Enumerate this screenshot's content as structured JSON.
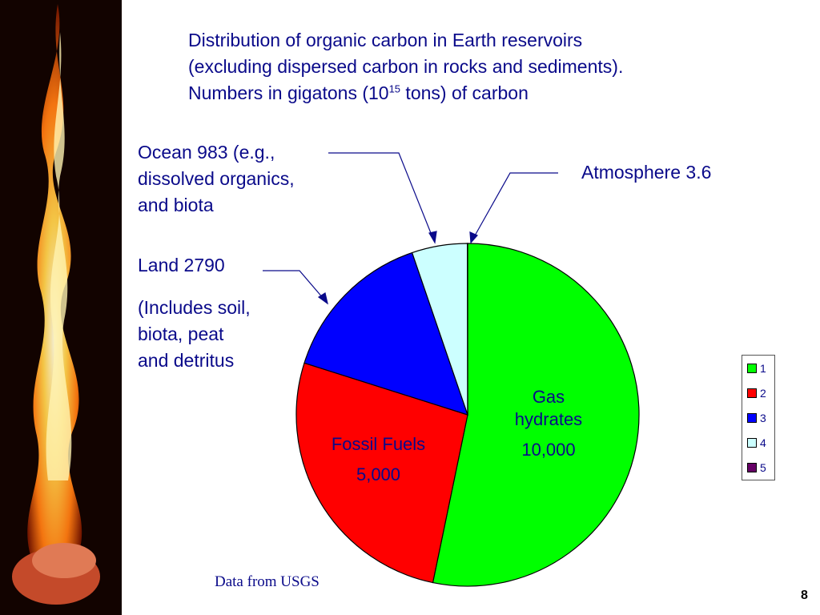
{
  "title": {
    "line1": "Distribution of organic carbon in Earth reservoirs",
    "line2": "(excluding dispersed carbon in rocks and sediments).",
    "line3_pre": "Numbers in gigatons (10",
    "line3_sup": "15",
    "line3_post": " tons) of carbon"
  },
  "callouts": {
    "ocean": [
      "Ocean 983 (e.g.,",
      "dissolved organics,",
      "and biota"
    ],
    "atmosphere": "Atmosphere 3.6",
    "land": "Land 2790",
    "land_detail": [
      "(Includes soil,",
      "biota, peat",
      "and detritus"
    ]
  },
  "chart_data": {
    "type": "pie",
    "title": "Distribution of organic carbon in Earth reservoirs (excluding dispersed carbon in rocks and sediments). Numbers in gigatons (10^15 tons) of carbon",
    "categories": [
      "1",
      "2",
      "3",
      "4",
      "5"
    ],
    "values": [
      10000,
      5000,
      2790,
      983,
      3.6
    ],
    "colors": [
      "#00ff00",
      "#ff0000",
      "#0000ff",
      "#ccffff",
      "#660066"
    ],
    "slice_labels": [
      [
        "Gas",
        "hydrates",
        "10,000"
      ],
      [
        "Fossil Fuels",
        "5,000"
      ],
      [],
      [],
      []
    ],
    "legend": {
      "placement": "right",
      "entries": [
        "1",
        "2",
        "3",
        "4",
        "5"
      ]
    }
  },
  "footer": {
    "source": "Data from USGS",
    "page_number": "8"
  }
}
